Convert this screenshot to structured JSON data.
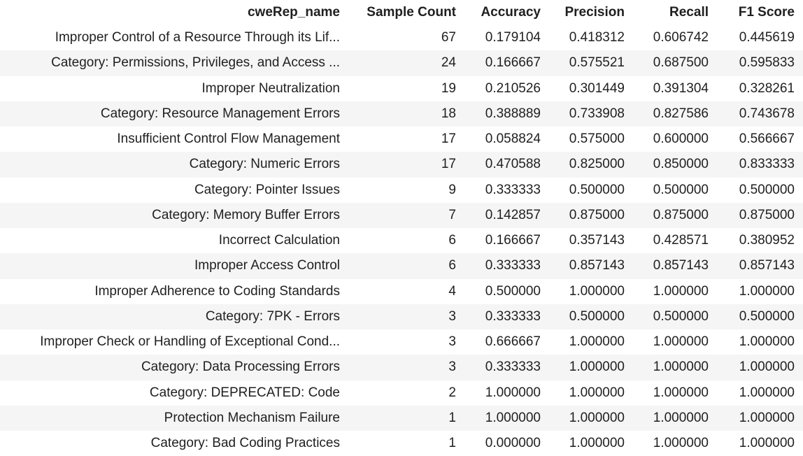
{
  "columns": [
    "cweRep_name",
    "Sample Count",
    "Accuracy",
    "Precision",
    "Recall",
    "F1 Score"
  ],
  "rows": [
    [
      "Improper Control of a Resource Through its Lif...",
      "67",
      "0.179104",
      "0.418312",
      "0.606742",
      "0.445619"
    ],
    [
      "Category: Permissions, Privileges, and Access ...",
      "24",
      "0.166667",
      "0.575521",
      "0.687500",
      "0.595833"
    ],
    [
      "Improper Neutralization",
      "19",
      "0.210526",
      "0.301449",
      "0.391304",
      "0.328261"
    ],
    [
      "Category: Resource Management Errors",
      "18",
      "0.388889",
      "0.733908",
      "0.827586",
      "0.743678"
    ],
    [
      "Insufficient Control Flow Management",
      "17",
      "0.058824",
      "0.575000",
      "0.600000",
      "0.566667"
    ],
    [
      "Category: Numeric Errors",
      "17",
      "0.470588",
      "0.825000",
      "0.850000",
      "0.833333"
    ],
    [
      "Category: Pointer Issues",
      "9",
      "0.333333",
      "0.500000",
      "0.500000",
      "0.500000"
    ],
    [
      "Category: Memory Buffer Errors",
      "7",
      "0.142857",
      "0.875000",
      "0.875000",
      "0.875000"
    ],
    [
      "Incorrect Calculation",
      "6",
      "0.166667",
      "0.357143",
      "0.428571",
      "0.380952"
    ],
    [
      "Improper Access Control",
      "6",
      "0.333333",
      "0.857143",
      "0.857143",
      "0.857143"
    ],
    [
      "Improper Adherence to Coding Standards",
      "4",
      "0.500000",
      "1.000000",
      "1.000000",
      "1.000000"
    ],
    [
      "Category: 7PK - Errors",
      "3",
      "0.333333",
      "0.500000",
      "0.500000",
      "0.500000"
    ],
    [
      "Improper Check or Handling of Exceptional Cond...",
      "3",
      "0.666667",
      "1.000000",
      "1.000000",
      "1.000000"
    ],
    [
      "Category: Data Processing Errors",
      "3",
      "0.333333",
      "1.000000",
      "1.000000",
      "1.000000"
    ],
    [
      "Category: DEPRECATED: Code",
      "2",
      "1.000000",
      "1.000000",
      "1.000000",
      "1.000000"
    ],
    [
      "Protection Mechanism Failure",
      "1",
      "1.000000",
      "1.000000",
      "1.000000",
      "1.000000"
    ],
    [
      "Category: Bad Coding Practices",
      "1",
      "0.000000",
      "1.000000",
      "1.000000",
      "1.000000"
    ]
  ]
}
